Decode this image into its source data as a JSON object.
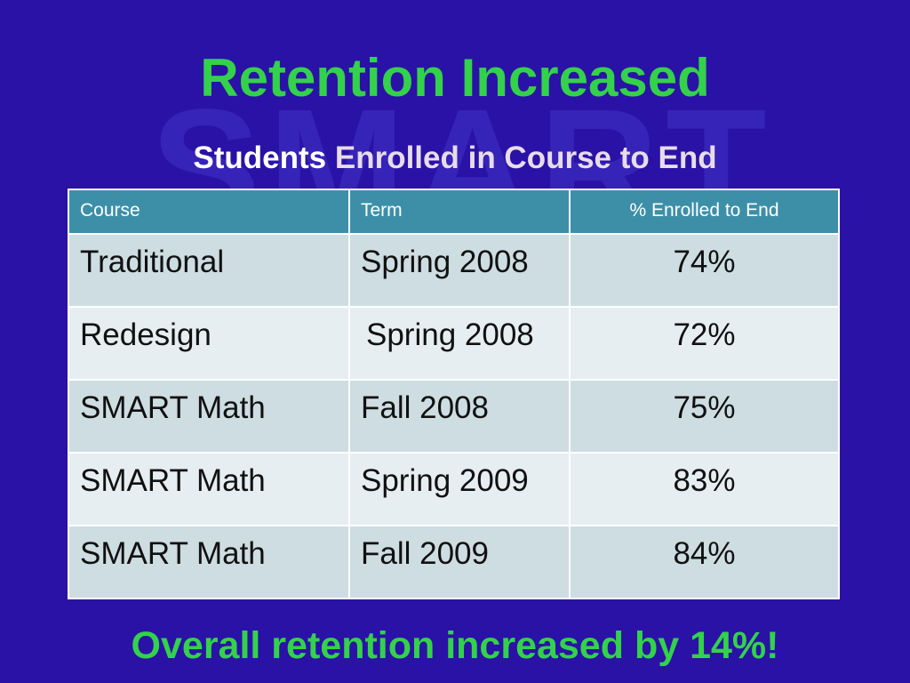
{
  "watermark": "SMART",
  "title": "Retention Increased",
  "subtitle": {
    "lead": "Students",
    "rest": "Enrolled in Course to End"
  },
  "table": {
    "headers": [
      "Course",
      "Term",
      "% Enrolled to End"
    ],
    "rows": [
      [
        "Traditional",
        "Spring 2008",
        "74%"
      ],
      [
        "Redesign",
        "Spring 2008",
        "72%"
      ],
      [
        "SMART Math",
        "Fall 2008",
        "75%"
      ],
      [
        "SMART Math",
        "Spring 2009",
        "83%"
      ],
      [
        "SMART Math",
        "Fall 2009",
        "84%"
      ]
    ]
  },
  "footer": "Overall retention increased by 14%!",
  "colors": {
    "background": "#2a12a6",
    "title_green": "#33d24a",
    "header_teal": "#3d8fa8",
    "row_light": "#e6eef2",
    "row_dark": "#cddde2"
  }
}
